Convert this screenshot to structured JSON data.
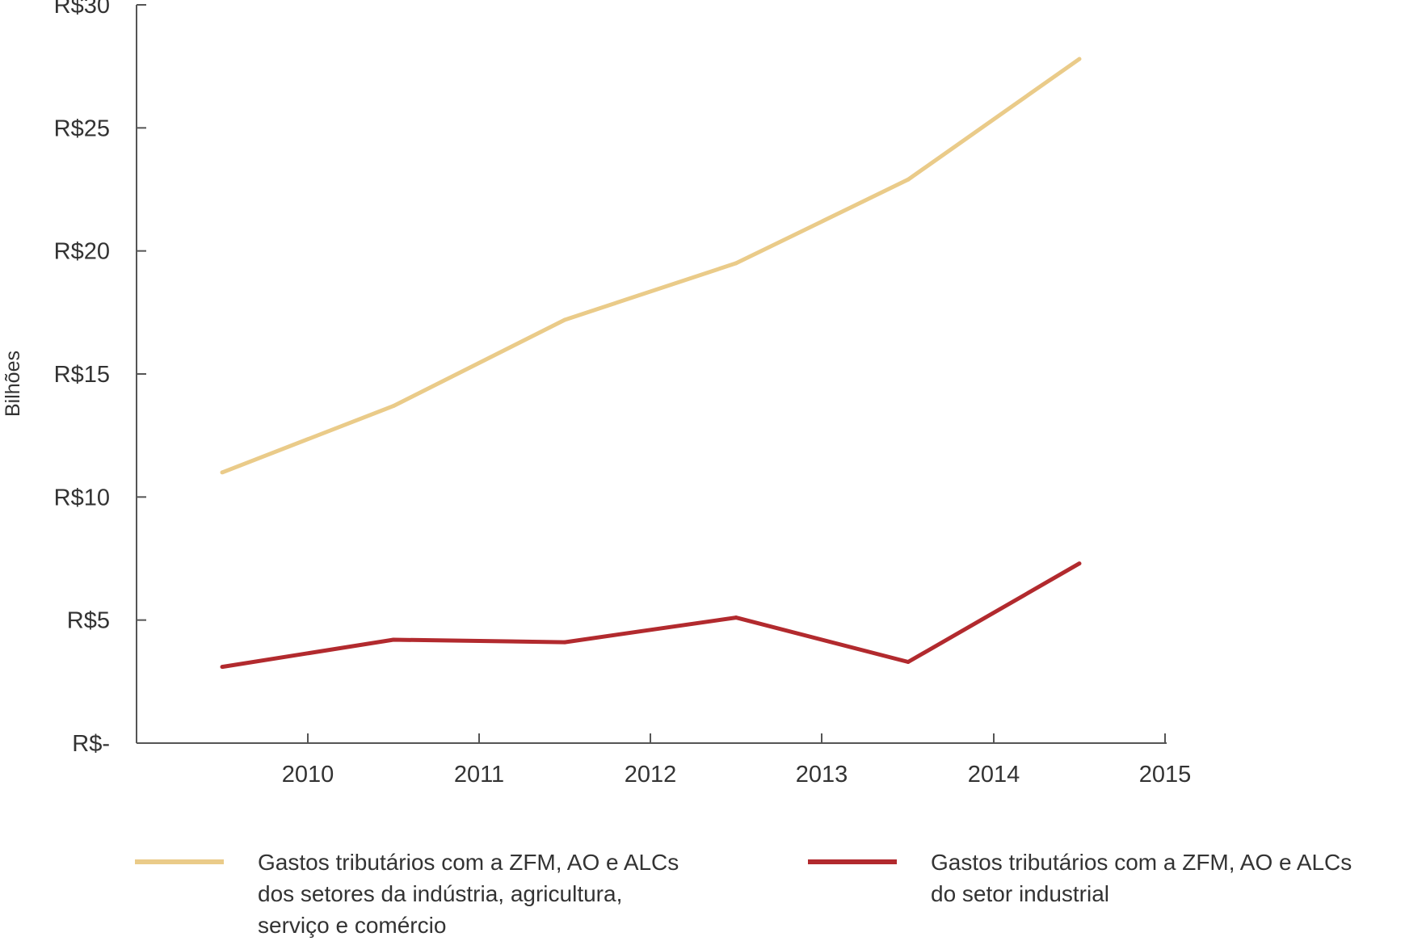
{
  "chart_data": {
    "type": "line",
    "ylabel": "Bilhões",
    "xlabel": "",
    "x_tick_labels": [
      "2010",
      "2011",
      "2012",
      "2013",
      "2014",
      "2015"
    ],
    "y_tick_labels": [
      "R$-",
      "R$5",
      "R$10",
      "R$15",
      "R$20",
      "R$25",
      "R$30"
    ],
    "ylim": [
      0,
      30
    ],
    "grid": false,
    "legend_position": "bottom",
    "series": [
      {
        "name": "Gastos tributários com a ZFM, AO e ALCs\ndos setores da indústria, agricultura,\nserviço e comércio",
        "color": "#EACB89",
        "values": [
          11.0,
          13.7,
          17.2,
          19.5,
          22.9,
          27.8
        ]
      },
      {
        "name": "Gastos tributários com a ZFM, AO e ALCs\ndo setor industrial",
        "color": "#B22A2E",
        "values": [
          3.1,
          4.2,
          4.1,
          5.1,
          3.3,
          7.3
        ]
      }
    ]
  }
}
